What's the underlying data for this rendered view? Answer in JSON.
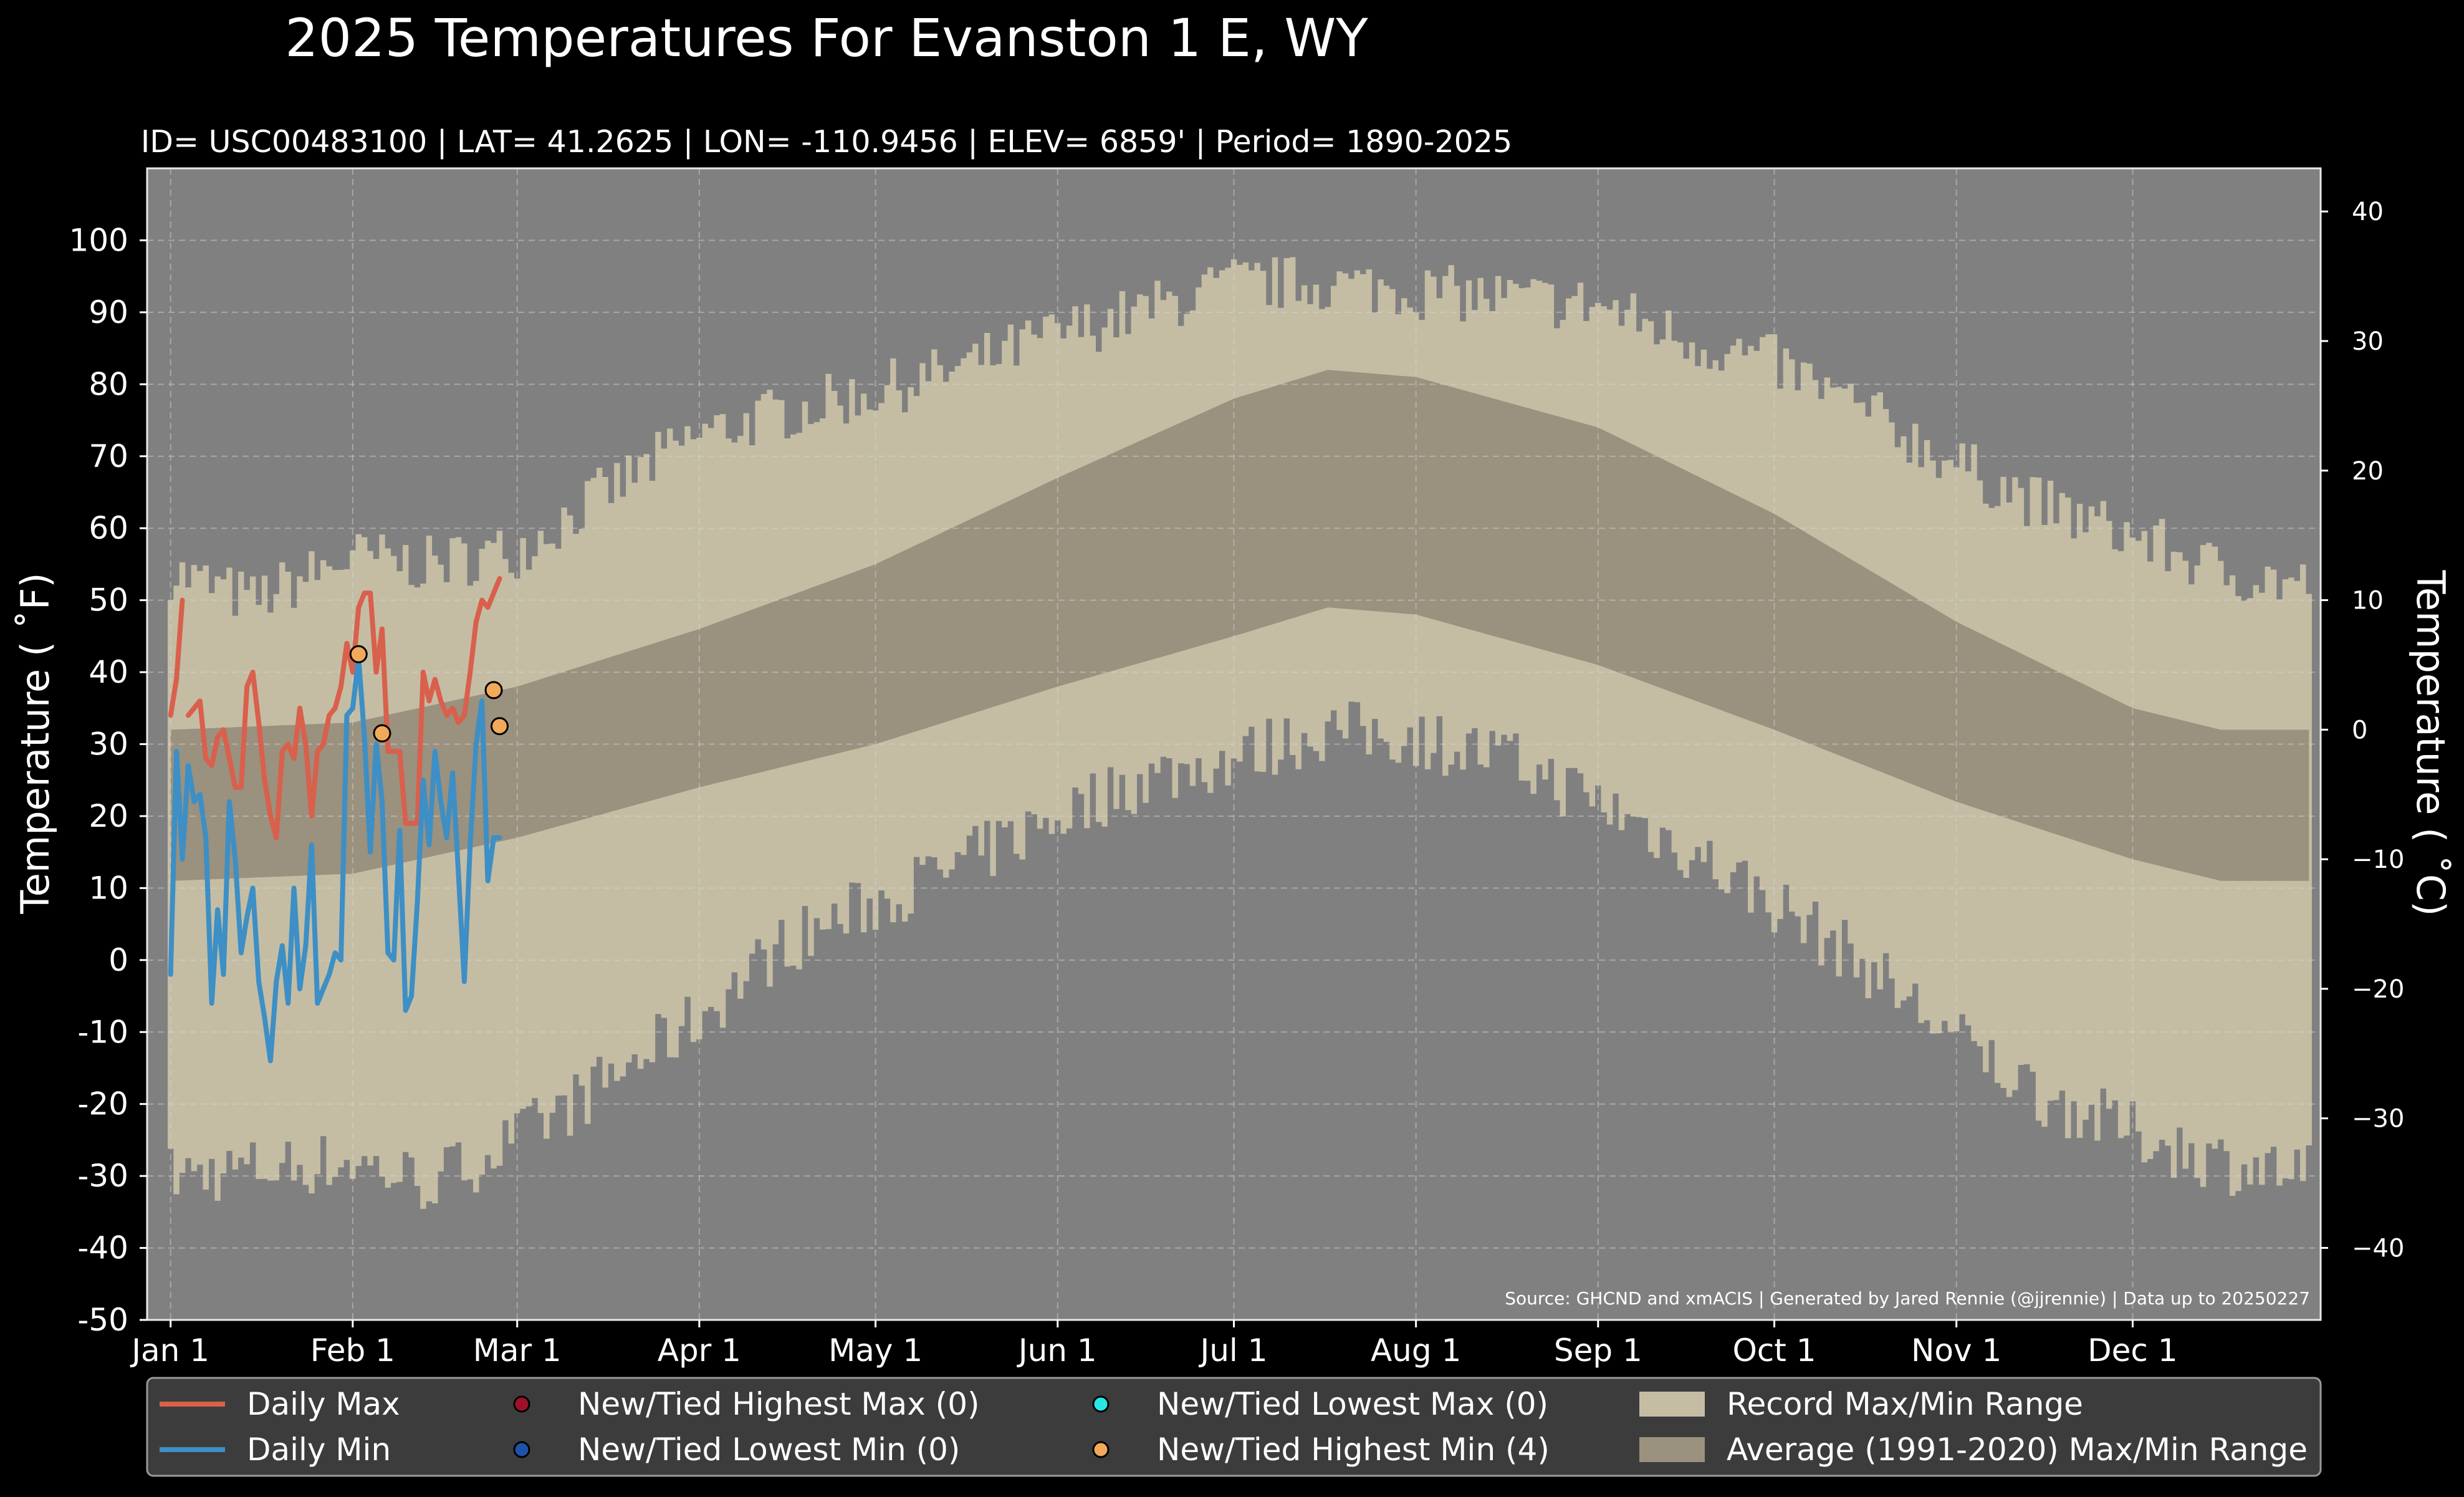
{
  "chart_data": {
    "type": "line",
    "title": "2025 Temperatures For Evanston 1 E, WY",
    "subtitle": "ID= USC00483100 | LAT= 41.2625 | LON= -110.9456 | ELEV= 6859' | Period= 1890-2025",
    "ylabel": "Temperature ($^\\circ$F)",
    "ylabel_display": "Temperature ( ˚F)",
    "ylabel_right": "Temperature ( ˚C)",
    "source": "Source: GHCND and xmACIS | Generated by Jared Rennie (@jjrennie) | Data up to 20250227",
    "ylim": [
      -50,
      110
    ],
    "ylim_right_celsius": [
      -45.56,
      43.33
    ],
    "xlim_day": [
      -3,
      367
    ],
    "grid": true,
    "y_ticks": [
      -50,
      -40,
      -30,
      -20,
      -10,
      0,
      10,
      20,
      30,
      40,
      50,
      60,
      70,
      80,
      90,
      100
    ],
    "y_ticks_right": [
      -40,
      -30,
      -20,
      -10,
      0,
      10,
      20,
      30,
      40
    ],
    "x_ticks": [
      {
        "label": "Jan 1",
        "day": 1
      },
      {
        "label": "Feb 1",
        "day": 32
      },
      {
        "label": "Mar 1",
        "day": 60
      },
      {
        "label": "Apr 1",
        "day": 91
      },
      {
        "label": "May 1",
        "day": 121
      },
      {
        "label": "Jun 1",
        "day": 152
      },
      {
        "label": "Jul 1",
        "day": 182
      },
      {
        "label": "Aug 1",
        "day": 213
      },
      {
        "label": "Sep 1",
        "day": 244
      },
      {
        "label": "Oct 1",
        "day": 274
      },
      {
        "label": "Nov 1",
        "day": 305
      },
      {
        "label": "Dec 1",
        "day": 335
      }
    ],
    "record_max_anchors": [
      {
        "day": 1,
        "value": 54
      },
      {
        "day": 15,
        "value": 50
      },
      {
        "day": 32,
        "value": 56
      },
      {
        "day": 45,
        "value": 55
      },
      {
        "day": 60,
        "value": 57
      },
      {
        "day": 75,
        "value": 65
      },
      {
        "day": 91,
        "value": 73
      },
      {
        "day": 105,
        "value": 76
      },
      {
        "day": 121,
        "value": 79
      },
      {
        "day": 135,
        "value": 82
      },
      {
        "day": 152,
        "value": 87
      },
      {
        "day": 166,
        "value": 90
      },
      {
        "day": 182,
        "value": 94
      },
      {
        "day": 198,
        "value": 94
      },
      {
        "day": 213,
        "value": 93
      },
      {
        "day": 228,
        "value": 92
      },
      {
        "day": 244,
        "value": 91
      },
      {
        "day": 260,
        "value": 86
      },
      {
        "day": 274,
        "value": 83
      },
      {
        "day": 290,
        "value": 76
      },
      {
        "day": 305,
        "value": 69
      },
      {
        "day": 320,
        "value": 63
      },
      {
        "day": 335,
        "value": 59
      },
      {
        "day": 350,
        "value": 54
      },
      {
        "day": 365,
        "value": 52
      }
    ],
    "record_min_anchors": [
      {
        "day": 1,
        "value": -30
      },
      {
        "day": 15,
        "value": -29
      },
      {
        "day": 32,
        "value": -28
      },
      {
        "day": 45,
        "value": -31
      },
      {
        "day": 60,
        "value": -25
      },
      {
        "day": 75,
        "value": -17
      },
      {
        "day": 91,
        "value": -8
      },
      {
        "day": 105,
        "value": 2
      },
      {
        "day": 121,
        "value": 8
      },
      {
        "day": 135,
        "value": 13
      },
      {
        "day": 152,
        "value": 20
      },
      {
        "day": 166,
        "value": 25
      },
      {
        "day": 182,
        "value": 28
      },
      {
        "day": 198,
        "value": 32
      },
      {
        "day": 213,
        "value": 31
      },
      {
        "day": 228,
        "value": 28
      },
      {
        "day": 244,
        "value": 22
      },
      {
        "day": 260,
        "value": 15
      },
      {
        "day": 274,
        "value": 8
      },
      {
        "day": 290,
        "value": -1
      },
      {
        "day": 305,
        "value": -11
      },
      {
        "day": 320,
        "value": -19
      },
      {
        "day": 335,
        "value": -24
      },
      {
        "day": 350,
        "value": -28
      },
      {
        "day": 365,
        "value": -30
      }
    ],
    "avg_max_anchors": [
      {
        "day": 1,
        "value": 32
      },
      {
        "day": 32,
        "value": 33
      },
      {
        "day": 60,
        "value": 38
      },
      {
        "day": 91,
        "value": 46
      },
      {
        "day": 121,
        "value": 55
      },
      {
        "day": 152,
        "value": 67
      },
      {
        "day": 182,
        "value": 78
      },
      {
        "day": 198,
        "value": 82
      },
      {
        "day": 213,
        "value": 81
      },
      {
        "day": 244,
        "value": 74
      },
      {
        "day": 274,
        "value": 62
      },
      {
        "day": 305,
        "value": 47
      },
      {
        "day": 335,
        "value": 35
      },
      {
        "day": 350,
        "value": 32
      },
      {
        "day": 365,
        "value": 32
      }
    ],
    "avg_min_anchors": [
      {
        "day": 1,
        "value": 11
      },
      {
        "day": 32,
        "value": 12
      },
      {
        "day": 60,
        "value": 17
      },
      {
        "day": 91,
        "value": 24
      },
      {
        "day": 121,
        "value": 30
      },
      {
        "day": 152,
        "value": 38
      },
      {
        "day": 182,
        "value": 45
      },
      {
        "day": 198,
        "value": 49
      },
      {
        "day": 213,
        "value": 48
      },
      {
        "day": 244,
        "value": 41
      },
      {
        "day": 274,
        "value": 32
      },
      {
        "day": 305,
        "value": 22
      },
      {
        "day": 335,
        "value": 14
      },
      {
        "day": 350,
        "value": 11
      },
      {
        "day": 365,
        "value": 11
      }
    ],
    "series": [
      {
        "name": "Daily Max",
        "color": "#d9604c",
        "day_start": 1,
        "day_break": 4,
        "values": [
          34,
          39,
          50,
          34,
          35,
          36,
          28,
          27,
          31,
          32,
          28,
          24,
          24,
          38,
          40,
          33,
          25,
          20,
          17,
          29,
          30,
          28,
          35,
          30,
          20,
          29,
          30,
          34,
          35,
          38,
          44,
          40,
          49,
          51,
          51,
          40,
          46,
          29,
          29,
          29,
          19,
          19,
          19,
          40,
          36,
          39,
          36,
          34,
          35,
          33,
          34,
          40,
          47,
          50,
          49,
          51,
          53
        ]
      },
      {
        "name": "Daily Min",
        "color": "#3d8fc5",
        "day_start": 1,
        "values": [
          -2,
          29,
          14,
          27,
          22,
          23,
          17,
          -6,
          7,
          -2,
          22,
          14,
          1,
          6,
          10,
          -3,
          -8,
          -14,
          -3,
          2,
          -6,
          10,
          -4,
          2,
          16,
          -6,
          -4,
          -2,
          1,
          0,
          34,
          35,
          42,
          31,
          15,
          30,
          22,
          1,
          0,
          18,
          -7,
          -5,
          8,
          25,
          16,
          29,
          22,
          17,
          26,
          12,
          -3,
          16,
          30,
          36,
          11,
          17,
          17
        ]
      }
    ],
    "highest_min_points": [
      {
        "day": 33,
        "value": 42.5
      },
      {
        "day": 37,
        "value": 31.5
      },
      {
        "day": 56,
        "value": 37.5
      },
      {
        "day": 57,
        "value": 32.5
      }
    ],
    "colors": {
      "background": "#000000",
      "plot_bg": "#808080",
      "record_range": "#c4bda4",
      "average_range": "#9a917f",
      "daily_max": "#d9604c",
      "daily_min": "#3d8fc5",
      "highest_max_marker": "#a0102a",
      "lowest_min_marker": "#1d52a8",
      "lowest_max_marker": "#29e6e6",
      "highest_min_marker": "#f2a95a"
    },
    "legend": {
      "placement": "bottom",
      "entries": [
        {
          "label": "Daily Max",
          "kind": "line",
          "color": "#d9604c"
        },
        {
          "label": "Daily Min",
          "kind": "line",
          "color": "#3d8fc5"
        },
        {
          "label": "New/Tied Highest Max (0)",
          "kind": "marker",
          "color": "#a0102a"
        },
        {
          "label": "New/Tied Lowest Min (0)",
          "kind": "marker",
          "color": "#1d52a8"
        },
        {
          "label": "New/Tied Lowest Max (0)",
          "kind": "marker",
          "color": "#29e6e6"
        },
        {
          "label": "New/Tied Highest Min (4)",
          "kind": "marker",
          "color": "#f2a95a"
        },
        {
          "label": "Record Max/Min Range",
          "kind": "patch",
          "color": "#c4bda4"
        },
        {
          "label": "Average (1991-2020) Max/Min Range",
          "kind": "patch",
          "color": "#9a917f"
        }
      ]
    }
  }
}
